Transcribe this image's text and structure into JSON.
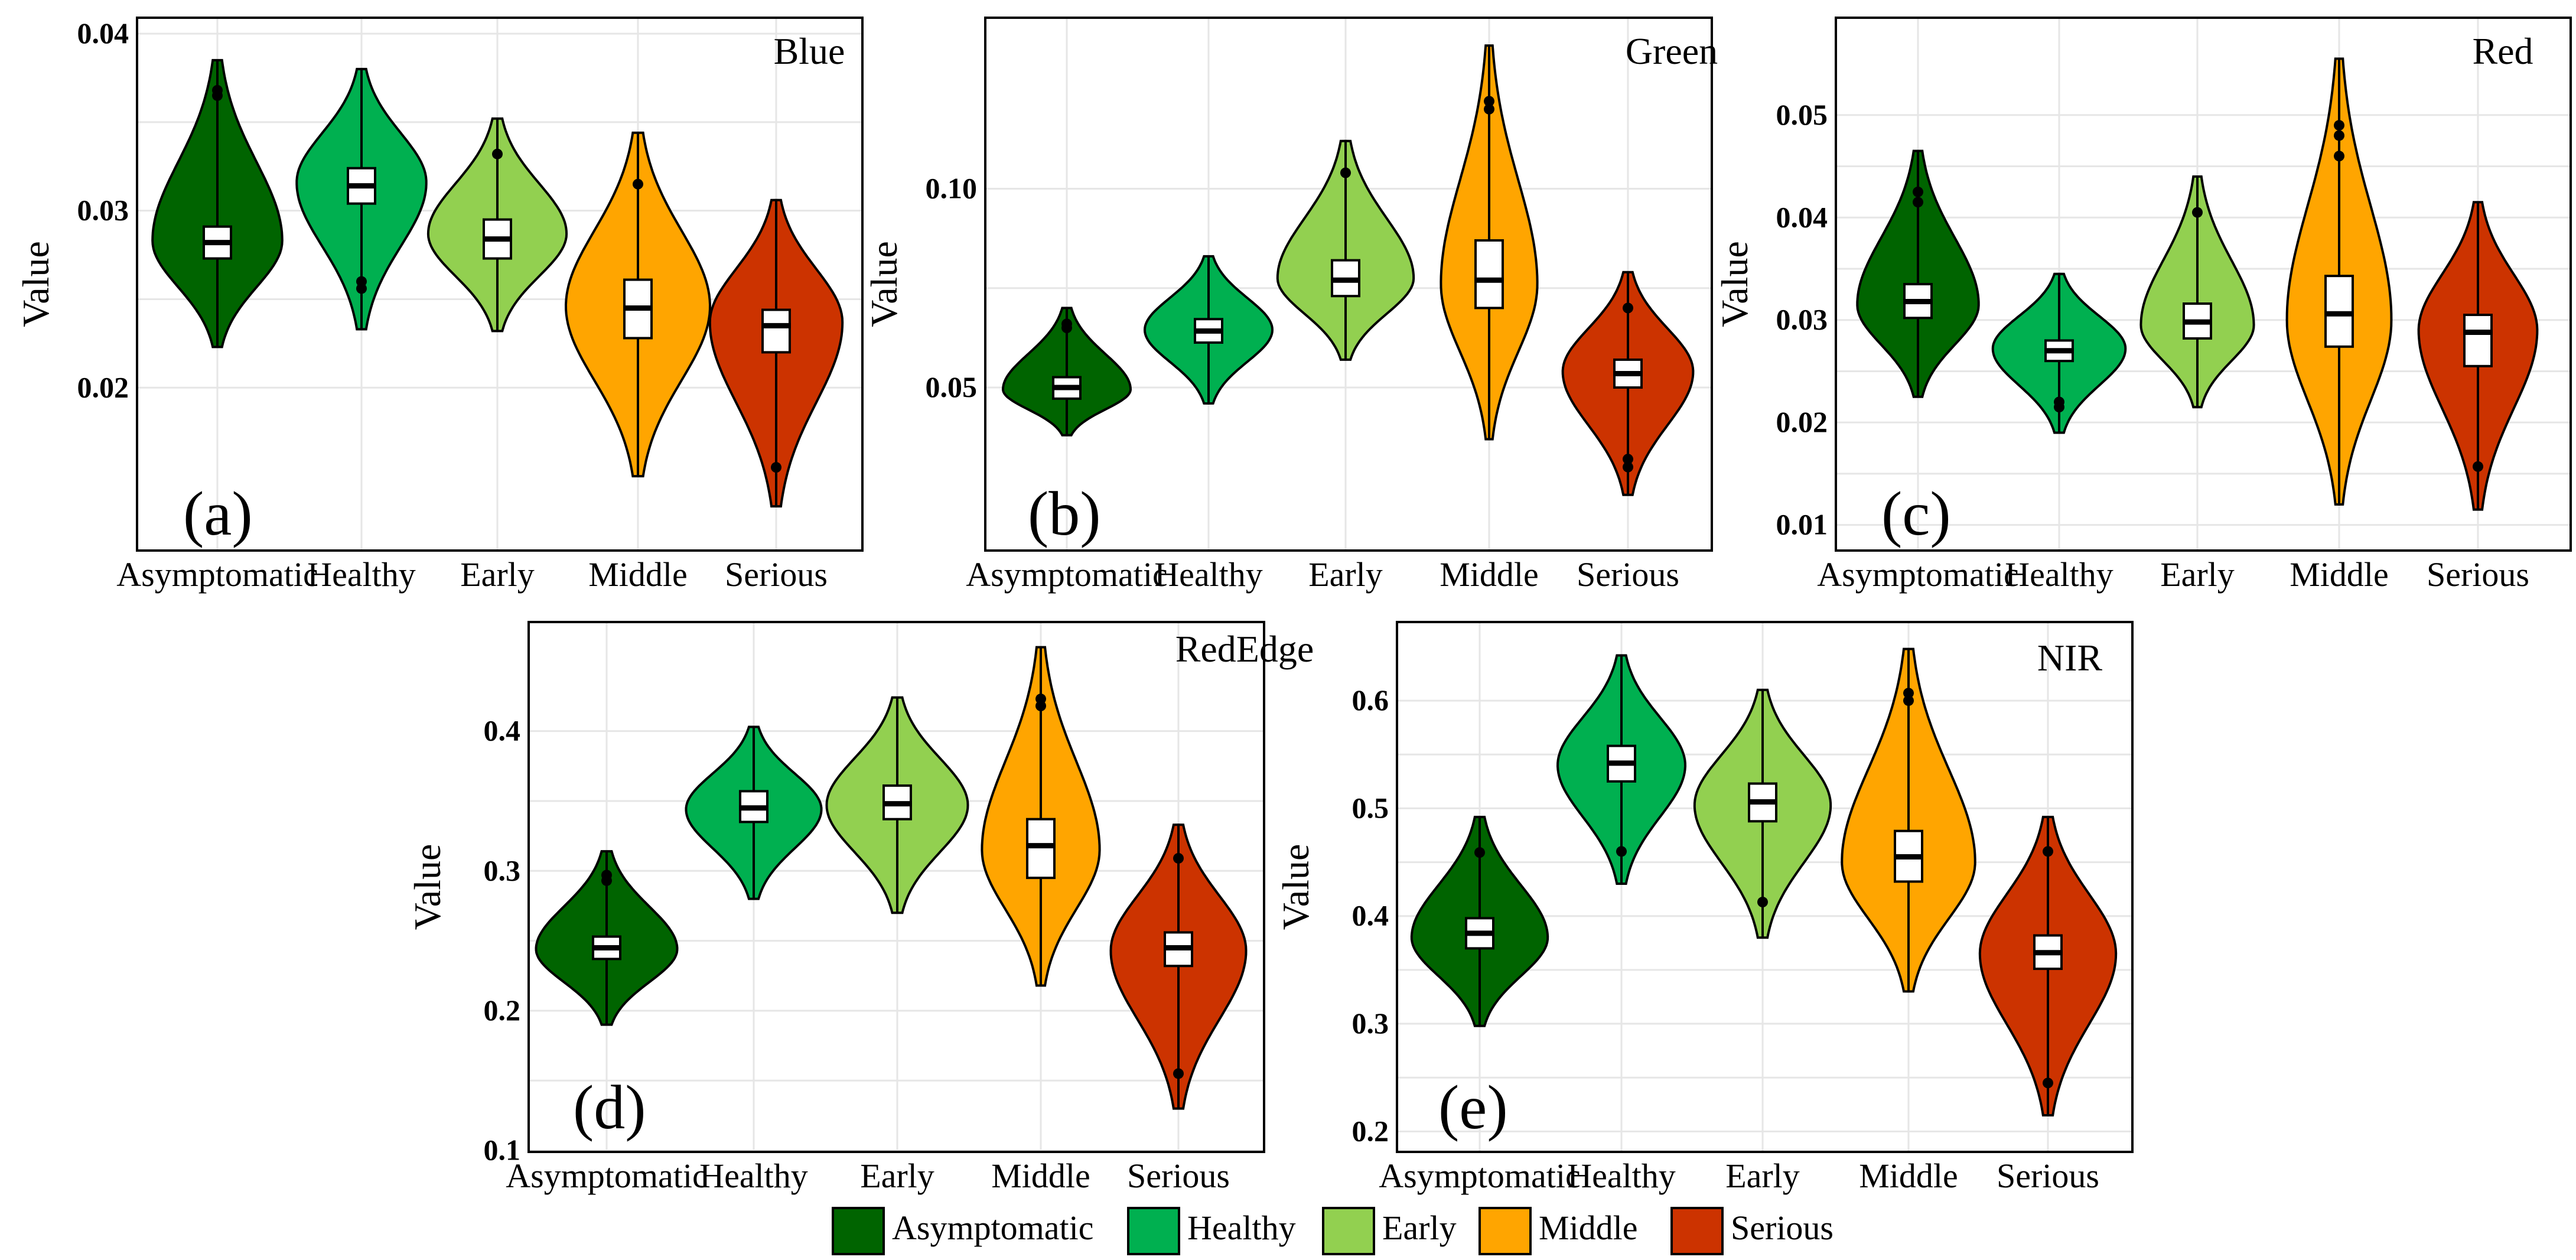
{
  "chart_data": [
    {
      "type": "violin",
      "panel_label": "(a)",
      "title": "Blue",
      "ylabel": "Value",
      "xlabel": "",
      "categories": [
        "Asymptomatic",
        "Healthy",
        "Early",
        "Middle",
        "Serious"
      ],
      "yticks": [
        0.02,
        0.03,
        0.04
      ],
      "ytick_labels": [
        "0.02",
        "0.03",
        "0.04"
      ],
      "ylim": [
        0.0108,
        0.0409
      ],
      "grid": true,
      "series": [
        {
          "name": "Asymptomatic",
          "min": 0.0223,
          "max": 0.0385,
          "q1": 0.0273,
          "median": 0.0282,
          "q3": 0.0291,
          "peak": 0.0283,
          "spread": 0.45,
          "outliers": [
            0.0365,
            0.0368
          ]
        },
        {
          "name": "Healthy",
          "min": 0.0233,
          "max": 0.038,
          "q1": 0.0304,
          "median": 0.0314,
          "q3": 0.0324,
          "peak": 0.0316,
          "spread": 0.45,
          "outliers": [
            0.0256,
            0.026
          ]
        },
        {
          "name": "Early",
          "min": 0.0232,
          "max": 0.0352,
          "q1": 0.0273,
          "median": 0.0284,
          "q3": 0.0295,
          "peak": 0.0287,
          "spread": 0.48,
          "outliers": [
            0.0332
          ]
        },
        {
          "name": "Middle",
          "min": 0.015,
          "max": 0.0344,
          "q1": 0.0228,
          "median": 0.0245,
          "q3": 0.0261,
          "peak": 0.0246,
          "spread": 0.5,
          "outliers": [
            0.0315
          ]
        },
        {
          "name": "Serious",
          "min": 0.0133,
          "max": 0.0306,
          "q1": 0.022,
          "median": 0.0235,
          "q3": 0.0244,
          "peak": 0.0237,
          "spread": 0.46,
          "outliers": [
            0.0155
          ]
        }
      ]
    },
    {
      "type": "violin",
      "panel_label": "(b)",
      "title": "Green",
      "ylabel": "Value",
      "xlabel": "",
      "categories": [
        "Asymptomatic",
        "Healthy",
        "Early",
        "Middle",
        "Serious"
      ],
      "yticks": [
        0.05,
        0.1
      ],
      "ytick_labels": [
        "0.05",
        "0.10"
      ],
      "ylim": [
        0.009,
        0.143
      ],
      "grid": true,
      "series": [
        {
          "name": "Asymptomatic",
          "min": 0.038,
          "max": 0.07,
          "q1": 0.0472,
          "median": 0.05,
          "q3": 0.0526,
          "peak": 0.0495,
          "spread": 0.45,
          "outliers": [
            0.065,
            0.066
          ]
        },
        {
          "name": "Healthy",
          "min": 0.046,
          "max": 0.083,
          "q1": 0.0613,
          "median": 0.0642,
          "q3": 0.0672,
          "peak": 0.0645,
          "spread": 0.45,
          "outliers": []
        },
        {
          "name": "Early",
          "min": 0.057,
          "max": 0.112,
          "q1": 0.073,
          "median": 0.077,
          "q3": 0.082,
          "peak": 0.0775,
          "spread": 0.48,
          "outliers": [
            0.104
          ]
        },
        {
          "name": "Middle",
          "min": 0.037,
          "max": 0.136,
          "q1": 0.07,
          "median": 0.077,
          "q3": 0.087,
          "peak": 0.076,
          "spread": 0.34,
          "outliers": [
            0.12,
            0.122
          ]
        },
        {
          "name": "Serious",
          "min": 0.023,
          "max": 0.079,
          "q1": 0.05,
          "median": 0.0535,
          "q3": 0.057,
          "peak": 0.054,
          "spread": 0.46,
          "outliers": [
            0.03,
            0.032,
            0.07
          ]
        }
      ]
    },
    {
      "type": "violin",
      "panel_label": "(c)",
      "title": "Red",
      "ylabel": "Value",
      "xlabel": "",
      "categories": [
        "Asymptomatic",
        "Healthy",
        "Early",
        "Middle",
        "Serious"
      ],
      "yticks": [
        0.01,
        0.02,
        0.03,
        0.04,
        0.05
      ],
      "ytick_labels": [
        "0.01",
        "0.02",
        "0.03",
        "0.04",
        "0.05"
      ],
      "ylim": [
        0.0075,
        0.0595
      ],
      "grid": true,
      "series": [
        {
          "name": "Asymptomatic",
          "min": 0.0225,
          "max": 0.0465,
          "q1": 0.0302,
          "median": 0.0318,
          "q3": 0.0335,
          "peak": 0.0315,
          "spread": 0.43,
          "outliers": [
            0.0415,
            0.0425
          ]
        },
        {
          "name": "Healthy",
          "min": 0.019,
          "max": 0.0345,
          "q1": 0.026,
          "median": 0.027,
          "q3": 0.028,
          "peak": 0.0272,
          "spread": 0.47,
          "outliers": [
            0.0215,
            0.022
          ]
        },
        {
          "name": "Early",
          "min": 0.0215,
          "max": 0.044,
          "q1": 0.0282,
          "median": 0.0298,
          "q3": 0.0316,
          "peak": 0.0295,
          "spread": 0.4,
          "outliers": [
            0.0405
          ]
        },
        {
          "name": "Middle",
          "min": 0.012,
          "max": 0.0555,
          "q1": 0.0274,
          "median": 0.0306,
          "q3": 0.0343,
          "peak": 0.03,
          "spread": 0.37,
          "outliers": [
            0.046,
            0.048,
            0.049
          ]
        },
        {
          "name": "Serious",
          "min": 0.0115,
          "max": 0.0415,
          "q1": 0.0255,
          "median": 0.0288,
          "q3": 0.0305,
          "peak": 0.029,
          "spread": 0.42,
          "outliers": [
            0.0157
          ]
        }
      ]
    },
    {
      "type": "violin",
      "panel_label": "(d)",
      "title": "RedEdge",
      "ylabel": "Value",
      "xlabel": "",
      "categories": [
        "Asymptomatic",
        "Healthy",
        "Early",
        "Middle",
        "Serious"
      ],
      "yticks": [
        0.1,
        0.2,
        0.3,
        0.4
      ],
      "ytick_labels": [
        "0.1",
        "0.2",
        "0.3",
        "0.4"
      ],
      "ylim": [
        0.099,
        0.478
      ],
      "grid": true,
      "series": [
        {
          "name": "Asymptomatic",
          "min": 0.19,
          "max": 0.314,
          "q1": 0.237,
          "median": 0.245,
          "q3": 0.253,
          "peak": 0.244,
          "spread": 0.48,
          "outliers": [
            0.293,
            0.297
          ]
        },
        {
          "name": "Healthy",
          "min": 0.28,
          "max": 0.403,
          "q1": 0.335,
          "median": 0.345,
          "q3": 0.357,
          "peak": 0.344,
          "spread": 0.46,
          "outliers": []
        },
        {
          "name": "Early",
          "min": 0.27,
          "max": 0.424,
          "q1": 0.337,
          "median": 0.348,
          "q3": 0.361,
          "peak": 0.347,
          "spread": 0.48,
          "outliers": []
        },
        {
          "name": "Middle",
          "min": 0.218,
          "max": 0.46,
          "q1": 0.295,
          "median": 0.318,
          "q3": 0.337,
          "peak": 0.315,
          "spread": 0.4,
          "outliers": [
            0.418,
            0.423
          ]
        },
        {
          "name": "Serious",
          "min": 0.13,
          "max": 0.333,
          "q1": 0.232,
          "median": 0.245,
          "q3": 0.256,
          "peak": 0.243,
          "spread": 0.46,
          "outliers": [
            0.155,
            0.309
          ]
        }
      ]
    },
    {
      "type": "violin",
      "panel_label": "(e)",
      "title": "NIR",
      "ylabel": "Value",
      "xlabel": "",
      "categories": [
        "Asymptomatic",
        "Healthy",
        "Early",
        "Middle",
        "Serious"
      ],
      "yticks": [
        0.2,
        0.3,
        0.4,
        0.5,
        0.6
      ],
      "ytick_labels": [
        "0.2",
        "0.3",
        "0.4",
        "0.5",
        "0.6"
      ],
      "ylim": [
        0.181,
        0.673
      ],
      "grid": true,
      "series": [
        {
          "name": "Asymptomatic",
          "min": 0.298,
          "max": 0.492,
          "q1": 0.37,
          "median": 0.384,
          "q3": 0.398,
          "peak": 0.38,
          "spread": 0.48,
          "outliers": [
            0.459
          ]
        },
        {
          "name": "Healthy",
          "min": 0.43,
          "max": 0.642,
          "q1": 0.525,
          "median": 0.542,
          "q3": 0.558,
          "peak": 0.54,
          "spread": 0.45,
          "outliers": [
            0.46
          ]
        },
        {
          "name": "Early",
          "min": 0.38,
          "max": 0.61,
          "q1": 0.488,
          "median": 0.506,
          "q3": 0.523,
          "peak": 0.503,
          "spread": 0.48,
          "outliers": [
            0.413
          ]
        },
        {
          "name": "Middle",
          "min": 0.33,
          "max": 0.648,
          "q1": 0.432,
          "median": 0.455,
          "q3": 0.479,
          "peak": 0.45,
          "spread": 0.47,
          "outliers": [
            0.6,
            0.607
          ]
        },
        {
          "name": "Serious",
          "min": 0.215,
          "max": 0.492,
          "q1": 0.351,
          "median": 0.366,
          "q3": 0.382,
          "peak": 0.365,
          "spread": 0.48,
          "outliers": [
            0.245,
            0.46
          ]
        }
      ]
    }
  ],
  "legend": {
    "items": [
      {
        "label": "Asymptomatic",
        "color": "#006400"
      },
      {
        "label": "Healthy",
        "color": "#00b050"
      },
      {
        "label": "Early",
        "color": "#92d050"
      },
      {
        "label": "Middle",
        "color": "#ffa500"
      },
      {
        "label": "Serious",
        "color": "#cc3300"
      }
    ]
  }
}
